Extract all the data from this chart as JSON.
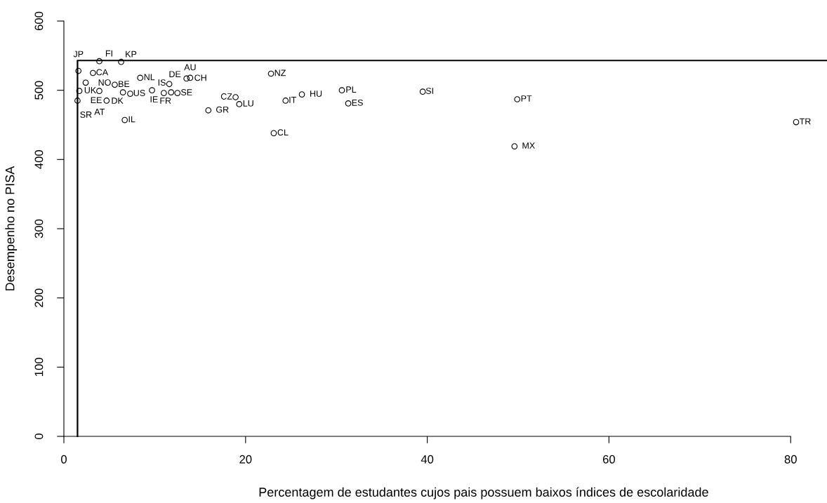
{
  "chart_data": {
    "type": "scatter",
    "xlabel": "Percentagem de estudantes cujos pais possuem baixos índices de escolaridade",
    "ylabel": "Desempenho no PISA",
    "xlim": [
      0,
      84
    ],
    "ylim": [
      0,
      600
    ],
    "xticks": [
      0,
      20,
      40,
      60,
      80
    ],
    "yticks": [
      0,
      100,
      200,
      300,
      400,
      500,
      600
    ],
    "grid": false,
    "legend": false,
    "marker": "circle",
    "series": [
      {
        "color": "#000000",
        "x": [
          3.9,
          6.3,
          1.6,
          3.2,
          2.4,
          8.4,
          5.6,
          11.6,
          13.5,
          13.9,
          1.7,
          3.9,
          6.5,
          7.3,
          9.7,
          11.0,
          11.8,
          12.5,
          1.5,
          4.7,
          6.7,
          15.9,
          18.9,
          19.3,
          22.8,
          23.1,
          24.4,
          26.2,
          30.6,
          31.3,
          39.5,
          49.9,
          49.6,
          80.6
        ],
        "values": [
          542,
          541,
          528,
          525,
          511,
          518,
          508,
          509,
          517,
          518,
          499,
          499,
          497,
          495,
          500,
          496,
          497,
          496,
          485,
          485,
          457,
          471,
          490,
          480,
          524,
          438,
          485,
          494,
          500,
          481,
          498,
          487,
          419,
          454
        ]
      },
      {
        "type": "line",
        "color": "#000000",
        "line_style": "solid",
        "marker": "none",
        "x": [
          1.5,
          1.5,
          84
        ],
        "values": [
          0,
          543,
          543
        ]
      }
    ],
    "annotations": [
      {
        "text": "FI",
        "x": 3.9,
        "y": 542
      },
      {
        "text": "KP",
        "x": 6.3,
        "y": 541
      },
      {
        "text": "JP",
        "x": 1.6,
        "y": 528
      },
      {
        "text": "CA",
        "x": 3.2,
        "y": 525
      },
      {
        "text": "EE",
        "x": 2.4,
        "y": 511
      },
      {
        "text": "NL",
        "x": 8.4,
        "y": 518
      },
      {
        "text": "BE",
        "x": 5.6,
        "y": 508
      },
      {
        "text": "DE",
        "x": 11.6,
        "y": 509
      },
      {
        "text": "CH",
        "x": 13.5,
        "y": 517
      },
      {
        "text": "AU",
        "x": 13.9,
        "y": 518
      },
      {
        "text": "NO",
        "x": 1.7,
        "y": 499
      },
      {
        "text": "UK",
        "x": 3.9,
        "y": 499
      },
      {
        "text": "DK",
        "x": 6.5,
        "y": 497
      },
      {
        "text": "US",
        "x": 7.3,
        "y": 495
      },
      {
        "text": "IS",
        "x": 9.7,
        "y": 500
      },
      {
        "text": "IE",
        "x": 11.0,
        "y": 496
      },
      {
        "text": "FR",
        "x": 11.8,
        "y": 497
      },
      {
        "text": "SE",
        "x": 12.5,
        "y": 496
      },
      {
        "text": "SR",
        "x": 1.5,
        "y": 485
      },
      {
        "text": "AT",
        "x": 4.7,
        "y": 485
      },
      {
        "text": "IL",
        "x": 6.7,
        "y": 457
      },
      {
        "text": "GR",
        "x": 15.9,
        "y": 471
      },
      {
        "text": "CZ",
        "x": 18.9,
        "y": 490
      },
      {
        "text": "LU",
        "x": 19.3,
        "y": 480
      },
      {
        "text": "NZ",
        "x": 22.8,
        "y": 524
      },
      {
        "text": "CL",
        "x": 23.1,
        "y": 438
      },
      {
        "text": "IT",
        "x": 24.4,
        "y": 485
      },
      {
        "text": "HU",
        "x": 26.2,
        "y": 494
      },
      {
        "text": "PL",
        "x": 30.6,
        "y": 500
      },
      {
        "text": "ES",
        "x": 31.3,
        "y": 481
      },
      {
        "text": "SI",
        "x": 39.5,
        "y": 498
      },
      {
        "text": "PT",
        "x": 49.9,
        "y": 487
      },
      {
        "text": "MX",
        "x": 49.6,
        "y": 419
      },
      {
        "text": "TR",
        "x": 80.6,
        "y": 454
      }
    ]
  }
}
